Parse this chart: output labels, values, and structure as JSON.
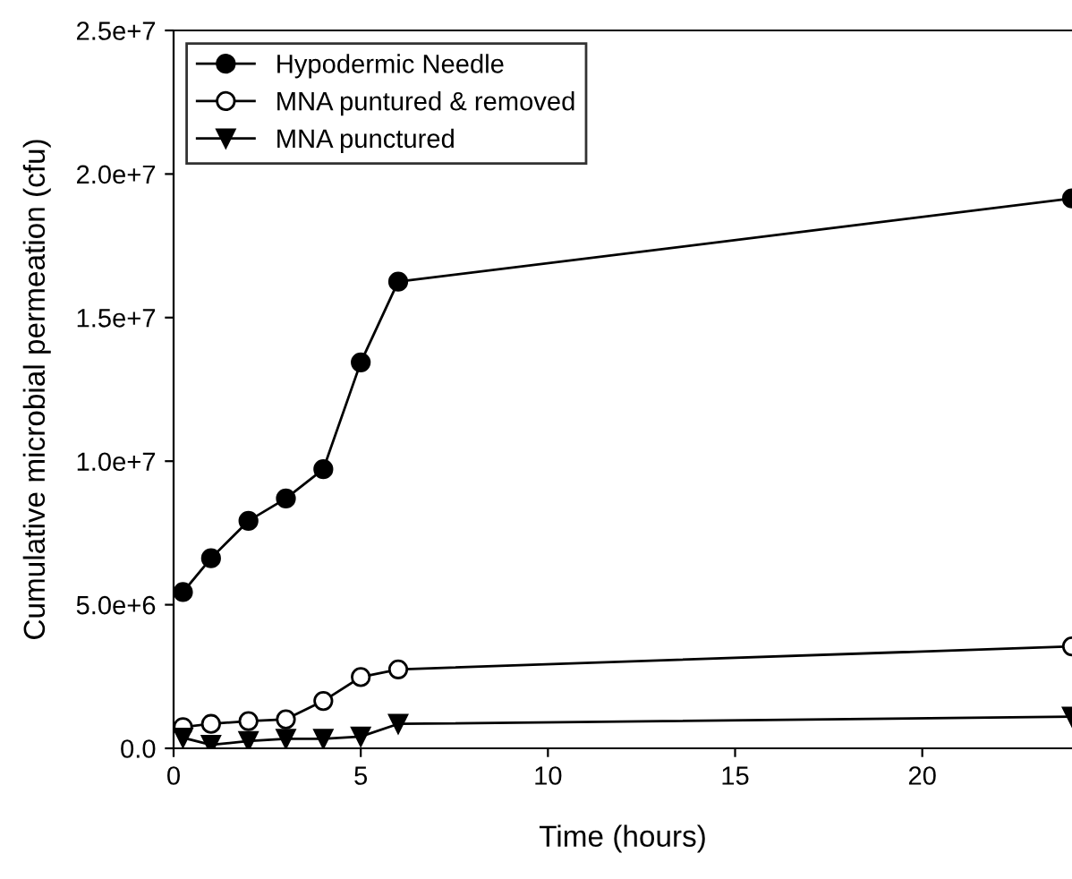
{
  "chart_data": {
    "type": "line",
    "xlabel": "Time (hours)",
    "ylabel": "Cumulative microbial permeation (cfu)",
    "x": [
      0.25,
      1,
      2,
      3,
      4,
      5,
      6,
      24
    ],
    "series": [
      {
        "name": "Hypodermic Needle",
        "color": "#000000",
        "marker": "circle",
        "values": [
          5440000,
          6620000,
          7920000,
          8700000,
          9720000,
          13440000,
          16250000,
          19150000
        ]
      },
      {
        "name": "MNA puntured & removed",
        "color": "#ffffff",
        "marker": "circle",
        "values": [
          740000,
          850000,
          950000,
          1010000,
          1650000,
          2480000,
          2750000,
          3550000
        ]
      },
      {
        "name": "MNA punctured",
        "color": "#000000",
        "marker": "triangle",
        "values": [
          370000,
          120000,
          250000,
          330000,
          330000,
          410000,
          850000,
          1100000
        ]
      }
    ],
    "xlim": [
      0,
      24
    ],
    "xticks": [
      0,
      5,
      10,
      15,
      20
    ],
    "ylim": [
      0,
      25000000
    ],
    "yticks": [
      {
        "value": 0,
        "label": "0.0"
      },
      {
        "value": 5000000,
        "label": "5.0e+6"
      },
      {
        "value": 10000000,
        "label": "1.0e+7"
      },
      {
        "value": 15000000,
        "label": "1.5e+7"
      },
      {
        "value": 20000000,
        "label": "2.0e+7"
      },
      {
        "value": 25000000,
        "label": "2.5e+7"
      }
    ],
    "legend": "top left",
    "grid": false,
    "line_style": "solid"
  }
}
